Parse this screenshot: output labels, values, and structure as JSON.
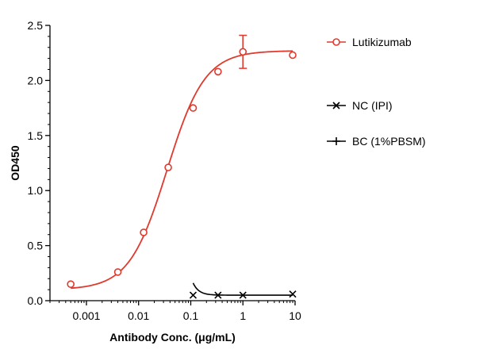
{
  "chart_data": {
    "type": "scatter",
    "xlabel": "Antibody Conc. (μg/mL)",
    "ylabel": "OD450",
    "x_scale": "log",
    "xlim": [
      0.0002,
      10
    ],
    "ylim": [
      0,
      2.5
    ],
    "x_ticks": [
      0.001,
      0.01,
      0.1,
      1,
      10
    ],
    "x_tick_labels": [
      "0.001",
      "0.01",
      "0.1",
      "1",
      "10"
    ],
    "y_ticks": [
      0,
      0.5,
      1.0,
      1.5,
      2.0,
      2.5
    ],
    "y_tick_labels": [
      "0.0",
      "0.5",
      "1.0",
      "1.5",
      "2.0",
      "2.5"
    ],
    "legend_position": "right",
    "series": [
      {
        "name": "Lutikizumab",
        "color": "#e03a2e",
        "marker": "open-circle",
        "fit": "4PL",
        "fit_params": {
          "bottom": 0.1,
          "top": 2.27,
          "ec50": 0.035,
          "hill": 1.2
        },
        "points": [
          {
            "x": 0.0005,
            "y": 0.15
          },
          {
            "x": 0.004,
            "y": 0.26
          },
          {
            "x": 0.0125,
            "y": 0.62
          },
          {
            "x": 0.037,
            "y": 1.21
          },
          {
            "x": 0.111,
            "y": 1.75
          },
          {
            "x": 0.333,
            "y": 2.08
          },
          {
            "x": 1,
            "y": 2.26,
            "error": 0.15
          },
          {
            "x": 9,
            "y": 2.23
          }
        ]
      },
      {
        "name": "NC (IPI)",
        "color": "#000000",
        "marker": "x",
        "fit": "decay",
        "points": [
          {
            "x": 0.111,
            "y": 0.05
          },
          {
            "x": 0.333,
            "y": 0.05
          },
          {
            "x": 1,
            "y": 0.05
          },
          {
            "x": 9,
            "y": 0.06
          }
        ]
      },
      {
        "name": "BC (1%PBSM)",
        "color": "#000000",
        "marker": "plus",
        "points": []
      }
    ]
  }
}
